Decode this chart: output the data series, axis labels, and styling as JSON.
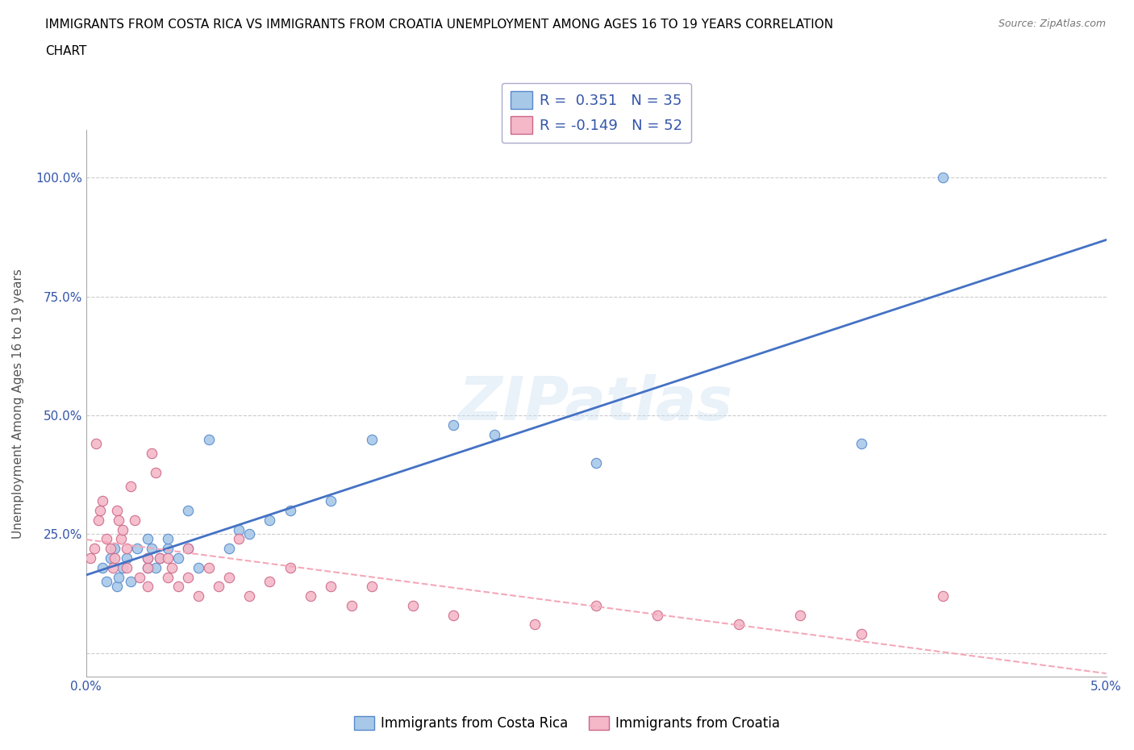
{
  "title_line1": "IMMIGRANTS FROM COSTA RICA VS IMMIGRANTS FROM CROATIA UNEMPLOYMENT AMONG AGES 16 TO 19 YEARS CORRELATION",
  "title_line2": "CHART",
  "source_text": "Source: ZipAtlas.com",
  "ylabel": "Unemployment Among Ages 16 to 19 years",
  "xlim": [
    0.0,
    0.05
  ],
  "ylim": [
    -0.05,
    1.1
  ],
  "xticks": [
    0.0,
    0.01,
    0.02,
    0.03,
    0.04,
    0.05
  ],
  "xticklabels": [
    "0.0%",
    "",
    "",
    "",
    "",
    "5.0%"
  ],
  "yticks": [
    0.0,
    0.25,
    0.5,
    0.75,
    1.0
  ],
  "yticklabels": [
    "",
    "25.0%",
    "50.0%",
    "75.0%",
    "100.0%"
  ],
  "watermark": "ZIPatlas",
  "costa_rica_R": 0.351,
  "costa_rica_N": 35,
  "croatia_R": -0.149,
  "croatia_N": 52,
  "costa_rica_color": "#a8c8e8",
  "croatia_color": "#f4b8c8",
  "costa_rica_edge_color": "#5588cc",
  "croatia_edge_color": "#cc6688",
  "costa_rica_line_color": "#4472c4",
  "croatia_line_color": "#f4a8b8",
  "background_color": "#ffffff",
  "grid_color": "#cccccc",
  "legend_R_color": "#3355aa",
  "costa_rica_x": [
    0.0008,
    0.001,
    0.0012,
    0.0014,
    0.0015,
    0.0016,
    0.0018,
    0.002,
    0.0022,
    0.0025,
    0.003,
    0.003,
    0.003,
    0.0032,
    0.0034,
    0.0036,
    0.004,
    0.004,
    0.0045,
    0.005,
    0.005,
    0.0055,
    0.006,
    0.007,
    0.0075,
    0.008,
    0.009,
    0.01,
    0.012,
    0.014,
    0.018,
    0.02,
    0.025,
    0.038,
    0.042
  ],
  "costa_rica_y": [
    0.18,
    0.15,
    0.2,
    0.22,
    0.14,
    0.16,
    0.18,
    0.2,
    0.15,
    0.22,
    0.18,
    0.24,
    0.2,
    0.22,
    0.18,
    0.2,
    0.22,
    0.24,
    0.2,
    0.22,
    0.3,
    0.18,
    0.45,
    0.22,
    0.26,
    0.25,
    0.28,
    0.3,
    0.32,
    0.45,
    0.48,
    0.46,
    0.4,
    0.44,
    1.0
  ],
  "croatia_x": [
    0.0002,
    0.0004,
    0.0005,
    0.0006,
    0.0007,
    0.0008,
    0.001,
    0.0012,
    0.0013,
    0.0014,
    0.0015,
    0.0016,
    0.0017,
    0.0018,
    0.002,
    0.002,
    0.0022,
    0.0024,
    0.0026,
    0.003,
    0.003,
    0.003,
    0.0032,
    0.0034,
    0.0036,
    0.004,
    0.004,
    0.0042,
    0.0045,
    0.005,
    0.005,
    0.0055,
    0.006,
    0.0065,
    0.007,
    0.0075,
    0.008,
    0.009,
    0.01,
    0.011,
    0.012,
    0.013,
    0.014,
    0.016,
    0.018,
    0.022,
    0.025,
    0.028,
    0.032,
    0.035,
    0.038,
    0.042
  ],
  "croatia_y": [
    0.2,
    0.22,
    0.44,
    0.28,
    0.3,
    0.32,
    0.24,
    0.22,
    0.18,
    0.2,
    0.3,
    0.28,
    0.24,
    0.26,
    0.22,
    0.18,
    0.35,
    0.28,
    0.16,
    0.2,
    0.14,
    0.18,
    0.42,
    0.38,
    0.2,
    0.16,
    0.2,
    0.18,
    0.14,
    0.16,
    0.22,
    0.12,
    0.18,
    0.14,
    0.16,
    0.24,
    0.12,
    0.15,
    0.18,
    0.12,
    0.14,
    0.1,
    0.14,
    0.1,
    0.08,
    0.06,
    0.1,
    0.08,
    0.06,
    0.08,
    0.04,
    0.12
  ]
}
